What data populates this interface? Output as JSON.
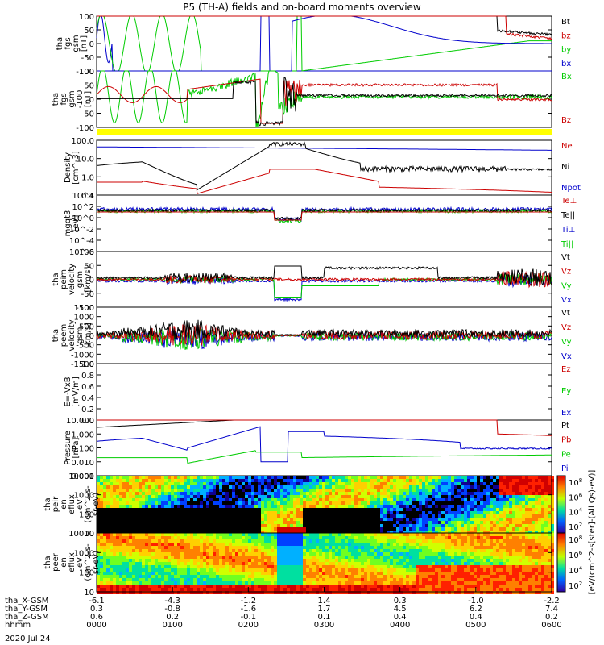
{
  "title": "P5 (TH-A) fields and on-board moments overview",
  "date": "2020 Jul 24",
  "colorbar_label": "[eV/(cm^2-s[ster]-(All Qs)-eV)]",
  "colorbar_ticks": [
    "10^8",
    "10^6",
    "10^4",
    "10^2"
  ],
  "colorbar_ticks_2": [
    "10^8",
    "10^6",
    "10^4",
    "10^2"
  ],
  "state_bar_color": "#ffff00",
  "chart_data": [
    {
      "type": "line",
      "name": "fgs_gsm",
      "ylabel": [
        "tha",
        "fgs",
        "gsm",
        "[nT]"
      ],
      "ylim": [
        -100,
        100
      ],
      "ticks": [
        "100",
        "50",
        "0",
        "-50",
        "-100"
      ],
      "legend": [
        {
          "label": "Bt",
          "color": "#000000"
        },
        {
          "label": "bz",
          "color": "#cc0000"
        },
        {
          "label": "by",
          "color": "#00cc00"
        },
        {
          "label": "bx",
          "color": "#0000cc"
        }
      ]
    },
    {
      "type": "line",
      "name": "fgs_gse",
      "ylabel": [
        "tha",
        "fgs",
        "gsm",
        "-100",
        "[nT]"
      ],
      "ylim": [
        -100,
        100
      ],
      "ticks": [
        "100",
        "50",
        "0",
        "-50",
        "-100"
      ],
      "legend": [
        {
          "label": "Bx",
          "color": "#00cc00"
        },
        {
          "label": "Bz",
          "color": "#cc0000"
        }
      ]
    },
    {
      "type": "line",
      "name": "density",
      "ylabel": [
        "Density",
        "[cm^-3]"
      ],
      "ylim": [
        0.05,
        100
      ],
      "ticks": [
        "100.0",
        "10.0",
        "1.0",
        "0.1"
      ],
      "legend": [
        {
          "label": "Ne",
          "color": "#cc0000"
        },
        {
          "label": "Ni",
          "color": "#000000"
        },
        {
          "label": "Npot",
          "color": "#0000cc"
        }
      ]
    },
    {
      "type": "line",
      "name": "temperature",
      "ylabel": [
        "mgqt3",
        "[eV]"
      ],
      "ticks": [
        "10^4",
        "10^2",
        "10^0",
        "10^-2",
        "10^-4",
        "10^-6"
      ],
      "legend": [
        {
          "label": "Te⊥",
          "color": "#cc0000"
        },
        {
          "label": "Te||",
          "color": "#000000"
        },
        {
          "label": "Ti⊥",
          "color": "#0000cc"
        },
        {
          "label": "Ti||",
          "color": "#00cc00"
        }
      ]
    },
    {
      "type": "line",
      "name": "peim_velocity",
      "ylabel": [
        "tha",
        "peim",
        "velocity",
        "gsm",
        "[km/s]"
      ],
      "ylim": [
        -100,
        100
      ],
      "ticks": [
        "100",
        "50",
        "0",
        "-50",
        "-100"
      ],
      "legend": [
        {
          "label": "Vt",
          "color": "#000000"
        },
        {
          "label": "Vz",
          "color": "#cc0000"
        },
        {
          "label": "Vy",
          "color": "#00cc00"
        },
        {
          "label": "Vx",
          "color": "#0000cc"
        }
      ]
    },
    {
      "type": "line",
      "name": "peem_velocity",
      "ylabel": [
        "tha",
        "peem",
        "velocity",
        "gsm",
        "[km/s]"
      ],
      "ylim": [
        -1500,
        1500
      ],
      "ticks": [
        "1500",
        "1000",
        "500",
        "0",
        "-500",
        "-1000",
        "-1500"
      ],
      "legend": [
        {
          "label": "Vt",
          "color": "#000000"
        },
        {
          "label": "Vz",
          "color": "#cc0000"
        },
        {
          "label": "Vy",
          "color": "#00cc00"
        },
        {
          "label": "Vx",
          "color": "#0000cc"
        }
      ]
    },
    {
      "type": "line",
      "name": "efield",
      "ylabel": [
        "E=-VxB",
        "[mV/m]"
      ],
      "ylim": [
        0,
        1
      ],
      "ticks": [
        "1.0",
        "0.8",
        "0.6",
        "0.4",
        "0.2",
        "0.0"
      ],
      "legend": [
        {
          "label": "Ez",
          "color": "#cc0000"
        },
        {
          "label": "Ey",
          "color": "#00cc00"
        },
        {
          "label": "Ex",
          "color": "#0000cc"
        }
      ]
    },
    {
      "type": "line",
      "name": "pressure",
      "ylabel": [
        "Pressure",
        "[nPa]"
      ],
      "ylim": [
        0.001,
        10
      ],
      "ticks": [
        "10.000",
        "1.000",
        "0.100",
        "0.010",
        "0.001"
      ],
      "legend": [
        {
          "label": "Pt",
          "color": "#000000"
        },
        {
          "label": "Pb",
          "color": "#cc0000"
        },
        {
          "label": "Pe",
          "color": "#00cc00"
        },
        {
          "label": "Pi",
          "color": "#0000cc"
        }
      ]
    },
    {
      "type": "heatmap",
      "name": "peir_en_eflux",
      "ylabel": [
        "tha",
        "peir",
        "en",
        "eflux",
        "eV",
        "(cm^2-s-",
        "sr-eV)"
      ],
      "ylim": [
        5,
        30000
      ],
      "ticks": [
        "10000",
        "1000",
        "100",
        "10"
      ]
    },
    {
      "type": "heatmap",
      "name": "peer_en_eflux",
      "ylabel": [
        "tha",
        "peer",
        "en",
        "eflux",
        "eV",
        "(cm^2-s-",
        "sr-eV)"
      ],
      "ylim": [
        5,
        30000
      ],
      "ticks": [
        "10000",
        "1000",
        "100",
        "10"
      ]
    }
  ],
  "xaxis": {
    "row_labels": [
      "tha_X-GSM",
      "tha_Y-GSM",
      "tha_Z-GSM",
      "hhmm"
    ],
    "columns": [
      [
        "-6.1",
        "0.3",
        "0.6",
        "0000"
      ],
      [
        "-4.3",
        "-0.8",
        "0.2",
        "0100"
      ],
      [
        "-1.2",
        "-1.6",
        "-0.1",
        "0200"
      ],
      [
        "1.4",
        "1.7",
        "0.1",
        "0300"
      ],
      [
        "0.3",
        "4.5",
        "0.4",
        "0400"
      ],
      [
        "-1.0",
        "6.2",
        "0.4",
        "0500"
      ],
      [
        "-2.2",
        "7.4",
        "0.2",
        "0600"
      ]
    ]
  }
}
